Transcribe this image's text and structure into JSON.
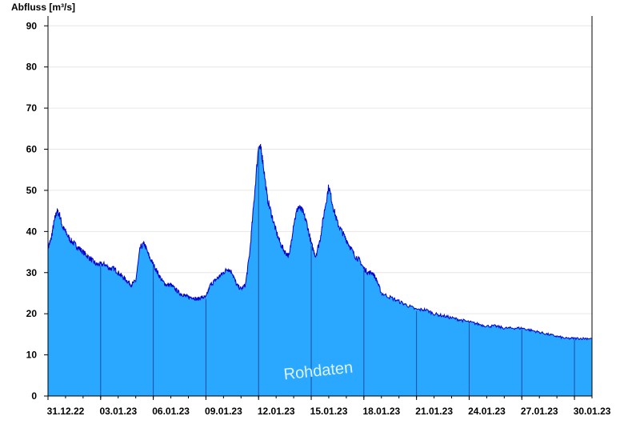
{
  "chart_data": {
    "type": "area",
    "ylabel": "Abfluss [m³/s]",
    "annotation": "Rohdaten",
    "ylim": [
      0,
      92
    ],
    "yticks": [
      0,
      10,
      20,
      30,
      40,
      50,
      60,
      70,
      80,
      90
    ],
    "xlim": [
      "2022-12-31",
      "2023-01-31"
    ],
    "xticks": [
      {
        "date": "2022-12-31",
        "label": "31.12.22"
      },
      {
        "date": "2023-01-03",
        "label": "03.01.23"
      },
      {
        "date": "2023-01-06",
        "label": "06.01.23"
      },
      {
        "date": "2023-01-09",
        "label": "09.01.23"
      },
      {
        "date": "2023-01-12",
        "label": "12.01.23"
      },
      {
        "date": "2023-01-15",
        "label": "15.01.23"
      },
      {
        "date": "2023-01-18",
        "label": "18.01.23"
      },
      {
        "date": "2023-01-21",
        "label": "21.01.23"
      },
      {
        "date": "2023-01-24",
        "label": "24.01.23"
      },
      {
        "date": "2023-01-27",
        "label": "27.01.23"
      },
      {
        "date": "2023-01-30",
        "label": "30.01.23"
      }
    ],
    "grid": true,
    "colors": {
      "fill": "#2aa8ff",
      "line": "#0000c8",
      "grid": "#e6e6e6"
    },
    "series": [
      {
        "x": [
          "2022-12-31 00:00",
          "2022-12-31 04:00",
          "2022-12-31 08:00",
          "2022-12-31 12:00",
          "2022-12-31 16:00",
          "2022-12-31 20:00",
          "2023-01-01 00:00",
          "2023-01-01 06:00",
          "2023-01-01 12:00",
          "2023-01-01 18:00",
          "2023-01-02 00:00",
          "2023-01-02 06:00",
          "2023-01-02 12:00",
          "2023-01-02 18:00",
          "2023-01-03 00:00",
          "2023-01-03 06:00",
          "2023-01-03 12:00",
          "2023-01-03 18:00",
          "2023-01-04 00:00",
          "2023-01-04 06:00",
          "2023-01-04 12:00",
          "2023-01-04 18:00",
          "2023-01-05 00:00",
          "2023-01-05 06:00",
          "2023-01-05 12:00",
          "2023-01-05 18:00",
          "2023-01-06 00:00",
          "2023-01-06 06:00",
          "2023-01-06 12:00",
          "2023-01-06 18:00",
          "2023-01-07 00:00",
          "2023-01-07 06:00",
          "2023-01-07 12:00",
          "2023-01-07 18:00",
          "2023-01-08 00:00",
          "2023-01-08 06:00",
          "2023-01-08 12:00",
          "2023-01-08 18:00",
          "2023-01-09 00:00",
          "2023-01-09 06:00",
          "2023-01-09 12:00",
          "2023-01-09 18:00",
          "2023-01-10 00:00",
          "2023-01-10 06:00",
          "2023-01-10 12:00",
          "2023-01-10 18:00",
          "2023-01-11 00:00",
          "2023-01-11 06:00",
          "2023-01-11 12:00",
          "2023-01-11 18:00",
          "2023-01-12 00:00",
          "2023-01-12 03:00",
          "2023-01-12 06:00",
          "2023-01-12 12:00",
          "2023-01-12 18:00",
          "2023-01-13 00:00",
          "2023-01-13 06:00",
          "2023-01-13 12:00",
          "2023-01-13 18:00",
          "2023-01-14 00:00",
          "2023-01-14 06:00",
          "2023-01-14 12:00",
          "2023-01-14 18:00",
          "2023-01-15 00:00",
          "2023-01-15 06:00",
          "2023-01-15 12:00",
          "2023-01-15 18:00",
          "2023-01-16 00:00",
          "2023-01-16 06:00",
          "2023-01-16 12:00",
          "2023-01-16 18:00",
          "2023-01-17 00:00",
          "2023-01-17 06:00",
          "2023-01-17 12:00",
          "2023-01-17 18:00",
          "2023-01-18 00:00",
          "2023-01-18 06:00",
          "2023-01-18 12:00",
          "2023-01-18 18:00",
          "2023-01-19 00:00",
          "2023-01-19 12:00",
          "2023-01-20 00:00",
          "2023-01-20 12:00",
          "2023-01-21 00:00",
          "2023-01-21 12:00",
          "2023-01-22 00:00",
          "2023-01-22 12:00",
          "2023-01-23 00:00",
          "2023-01-23 12:00",
          "2023-01-24 00:00",
          "2023-01-24 12:00",
          "2023-01-25 00:00",
          "2023-01-25 12:00",
          "2023-01-26 00:00",
          "2023-01-26 12:00",
          "2023-01-27 00:00",
          "2023-01-27 12:00",
          "2023-01-28 00:00",
          "2023-01-28 12:00",
          "2023-01-29 00:00",
          "2023-01-29 12:00",
          "2023-01-30 00:00",
          "2023-01-30 12:00",
          "2023-01-31 00:00"
        ],
        "y": [
          36,
          38,
          42,
          45,
          44,
          41,
          40,
          38,
          37,
          36,
          35,
          34,
          33,
          32,
          32,
          32,
          31,
          31,
          30,
          29,
          28,
          27,
          28,
          36,
          37,
          34,
          32,
          30,
          28,
          27,
          27,
          26,
          25,
          24.5,
          24,
          24,
          23.5,
          24,
          24,
          27,
          28,
          29,
          30,
          31,
          30,
          27,
          26,
          27,
          35,
          48,
          61,
          60,
          57,
          48,
          44,
          40,
          37,
          35,
          34,
          42,
          46,
          45,
          42,
          37,
          34,
          38,
          45,
          51,
          46,
          42,
          40,
          38,
          36,
          34,
          33,
          31,
          30,
          30,
          28,
          25,
          24,
          23,
          22,
          21,
          21,
          20,
          19.5,
          19,
          18.5,
          18,
          17.5,
          17,
          17,
          16.5,
          16.5,
          16.5,
          16,
          15.5,
          15,
          14.5,
          14,
          14,
          14,
          14
        ]
      }
    ]
  }
}
